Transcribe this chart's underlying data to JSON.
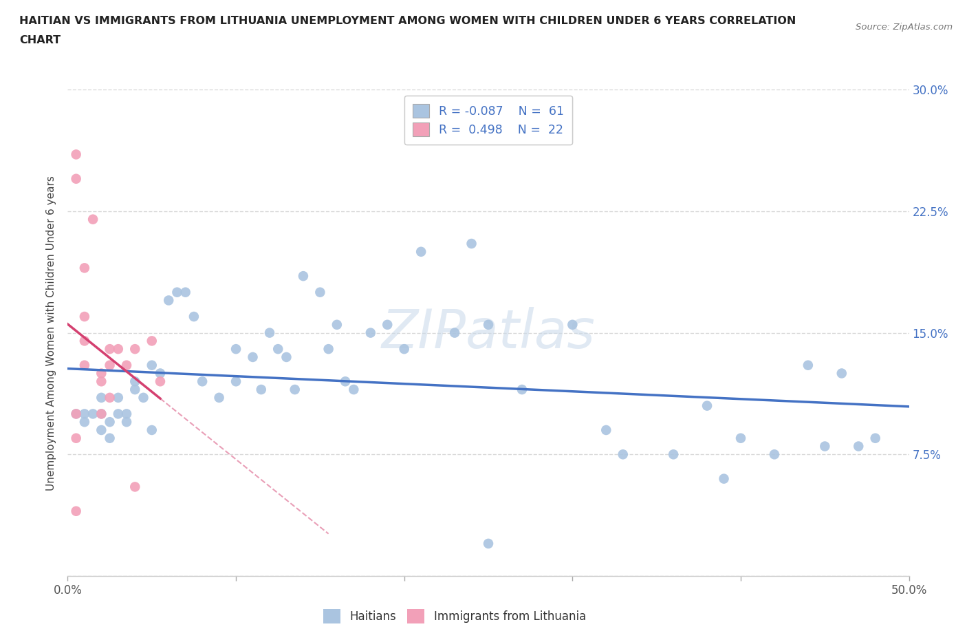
{
  "title_line1": "HAITIAN VS IMMIGRANTS FROM LITHUANIA UNEMPLOYMENT AMONG WOMEN WITH CHILDREN UNDER 6 YEARS CORRELATION",
  "title_line2": "CHART",
  "source_text": "Source: ZipAtlas.com",
  "ylabel": "Unemployment Among Women with Children Under 6 years",
  "xlim": [
    0,
    0.5
  ],
  "ylim": [
    0,
    0.3
  ],
  "xtick_positions": [
    0.0,
    0.1,
    0.2,
    0.3,
    0.4,
    0.5
  ],
  "xtick_labels_show": [
    "0.0%",
    "",
    "",
    "",
    "",
    "50.0%"
  ],
  "yticks": [
    0.0,
    0.075,
    0.15,
    0.225,
    0.3
  ],
  "yticklabels_right": [
    "",
    "7.5%",
    "15.0%",
    "22.5%",
    "30.0%"
  ],
  "background_color": "#ffffff",
  "grid_color": "#d8d8d8",
  "grid_style": "--",
  "watermark": "ZIPatlas",
  "color_haitian": "#aac4e0",
  "color_haiti_line": "#4472c4",
  "color_lithuania": "#f2a0b8",
  "color_lithuania_line": "#d44070",
  "color_legend_text": "#4472c4",
  "haitian_x": [
    0.005,
    0.01,
    0.01,
    0.015,
    0.02,
    0.02,
    0.02,
    0.025,
    0.025,
    0.03,
    0.03,
    0.035,
    0.035,
    0.04,
    0.04,
    0.045,
    0.05,
    0.05,
    0.055,
    0.06,
    0.065,
    0.07,
    0.075,
    0.08,
    0.09,
    0.1,
    0.1,
    0.11,
    0.115,
    0.12,
    0.125,
    0.13,
    0.135,
    0.14,
    0.15,
    0.155,
    0.16,
    0.165,
    0.17,
    0.18,
    0.19,
    0.2,
    0.21,
    0.23,
    0.24,
    0.25,
    0.27,
    0.3,
    0.32,
    0.33,
    0.36,
    0.38,
    0.39,
    0.4,
    0.42,
    0.44,
    0.45,
    0.46,
    0.47,
    0.48,
    0.25
  ],
  "haitian_y": [
    0.1,
    0.1,
    0.095,
    0.1,
    0.11,
    0.1,
    0.09,
    0.095,
    0.085,
    0.11,
    0.1,
    0.1,
    0.095,
    0.12,
    0.115,
    0.11,
    0.13,
    0.09,
    0.125,
    0.17,
    0.175,
    0.175,
    0.16,
    0.12,
    0.11,
    0.14,
    0.12,
    0.135,
    0.115,
    0.15,
    0.14,
    0.135,
    0.115,
    0.185,
    0.175,
    0.14,
    0.155,
    0.12,
    0.115,
    0.15,
    0.155,
    0.14,
    0.2,
    0.15,
    0.205,
    0.155,
    0.115,
    0.155,
    0.09,
    0.075,
    0.075,
    0.105,
    0.06,
    0.085,
    0.075,
    0.13,
    0.08,
    0.125,
    0.08,
    0.085,
    0.02
  ],
  "lithuania_x": [
    0.005,
    0.005,
    0.005,
    0.005,
    0.005,
    0.01,
    0.01,
    0.01,
    0.01,
    0.015,
    0.02,
    0.02,
    0.02,
    0.025,
    0.025,
    0.025,
    0.03,
    0.035,
    0.04,
    0.04,
    0.05,
    0.055
  ],
  "lithuania_y": [
    0.26,
    0.245,
    0.1,
    0.085,
    0.04,
    0.19,
    0.16,
    0.145,
    0.13,
    0.22,
    0.125,
    0.12,
    0.1,
    0.14,
    0.13,
    0.11,
    0.14,
    0.13,
    0.14,
    0.055,
    0.145,
    0.12
  ]
}
